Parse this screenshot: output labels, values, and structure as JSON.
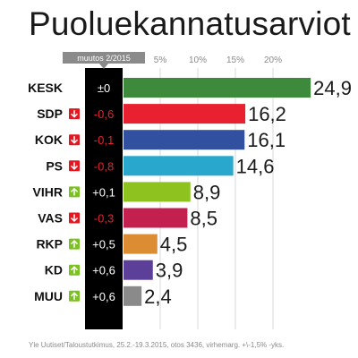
{
  "title": "Puoluekannatusarviot",
  "change_header": "muutos 2/2015",
  "footer": "Yle Uutiset/Taloustutkimus, 25.2.-19.3.2015, otos 3436, virhemarg. +\\-1,5% -yks.",
  "chart_data": {
    "type": "bar",
    "orientation": "horizontal",
    "title": "Puoluekannatusarviot",
    "categories": [
      "KESK",
      "SDP",
      "KOK",
      "PS",
      "VIHR",
      "VAS",
      "RKP",
      "KD",
      "MUU"
    ],
    "values": [
      24.9,
      16.2,
      16.1,
      14.6,
      8.9,
      8.5,
      4.5,
      3.9,
      2.4
    ],
    "value_labels": [
      "24,9",
      "16,2",
      "16,1",
      "14,6",
      "8,9",
      "8,5",
      "4,5",
      "3,9",
      "2,4"
    ],
    "changes": [
      "±0",
      "-0,6",
      "-0,1",
      "-0,8",
      "+0,1",
      "-0,3",
      "+0,5",
      "+0,6",
      "+0,6"
    ],
    "change_direction": [
      "none",
      "down",
      "down",
      "down",
      "up",
      "down",
      "up",
      "up",
      "up"
    ],
    "bar_colors": [
      "#3d8a3c",
      "#e8202f",
      "#3250a0",
      "#2aa7cc",
      "#8dc21f",
      "#c3204f",
      "#dc8d33",
      "#5c3f99",
      "#8a8a8a"
    ],
    "x_ticks": [
      "5%",
      "10%",
      "15%",
      "20%"
    ],
    "x_tick_values": [
      5,
      10,
      15,
      20
    ],
    "xlim": [
      0,
      25
    ],
    "grid": true,
    "colors": {
      "up": "#7cc122",
      "down": "#e3171f",
      "negative_text": "#e8202f",
      "change_panel": "#000000",
      "header_badge": "#8a8a8a"
    }
  }
}
